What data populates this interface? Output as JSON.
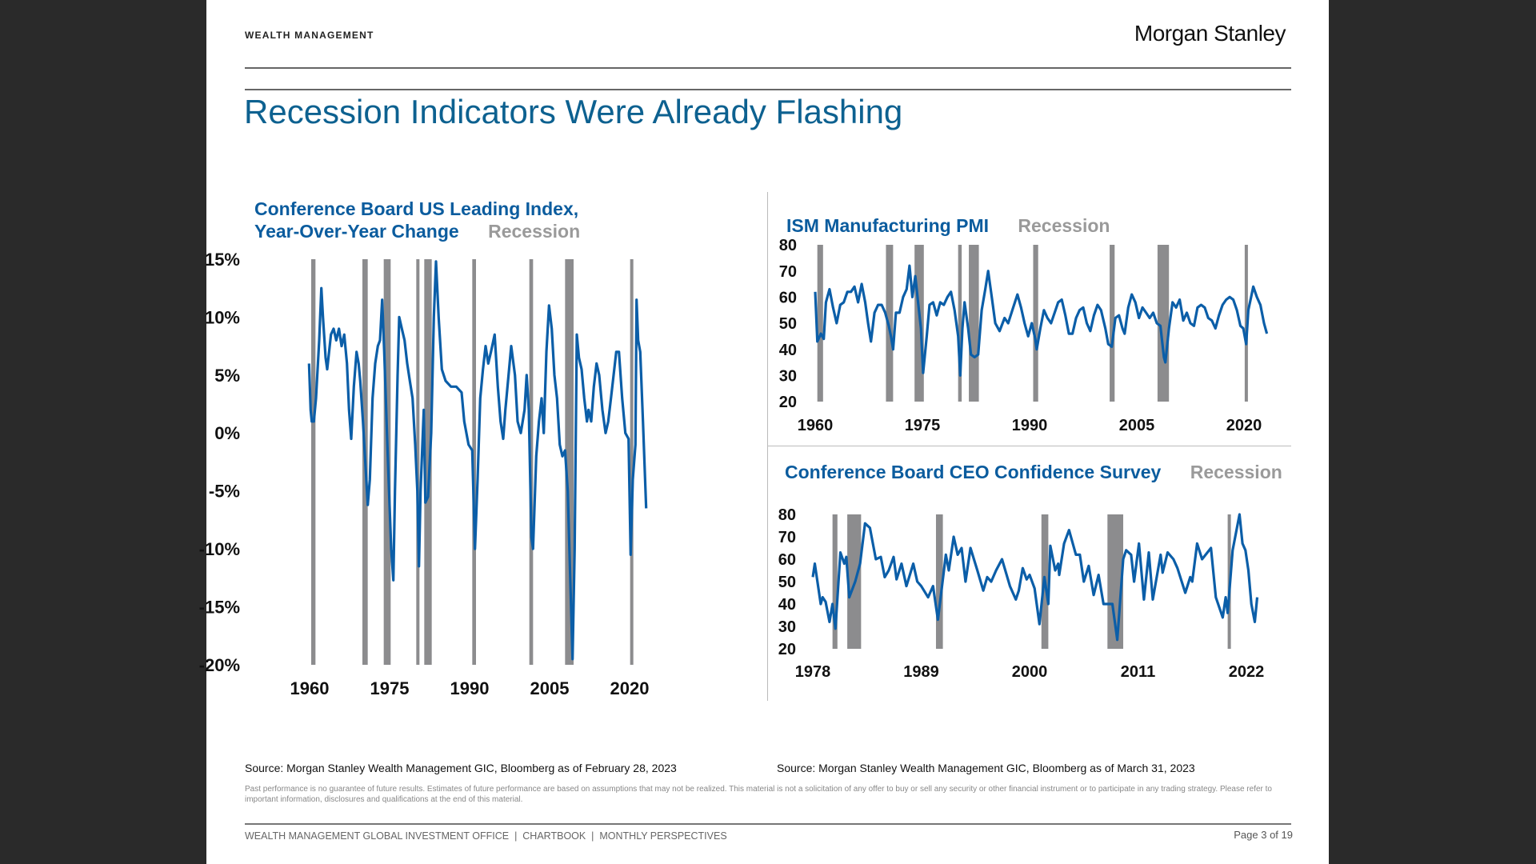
{
  "header": {
    "section": "WEALTH MANAGEMENT",
    "logo": "Morgan Stanley"
  },
  "title": "Recession Indicators Were Already Flashing",
  "colors": {
    "line": "#0b5ea8",
    "recession": "#8c8c8e",
    "title": "#0d6190"
  },
  "chart_data": [
    {
      "type": "line",
      "title": "Conference Board US Leading Index, Year-Over-Year Change",
      "legend": [
        "Recession"
      ],
      "yticks": [
        "15%",
        "10%",
        "5%",
        "0%",
        "-5%",
        "-10%",
        "-15%",
        "-20%"
      ],
      "ylim": [
        -20,
        15
      ],
      "xticks": [
        "1960",
        "1975",
        "1990",
        "2005",
        "2020"
      ],
      "xlim": [
        1960,
        2023
      ],
      "recessions": [
        [
          1960.3,
          1961.1
        ],
        [
          1969.9,
          1970.9
        ],
        [
          1973.9,
          1975.2
        ],
        [
          1980.0,
          1980.5
        ],
        [
          1981.5,
          1982.9
        ],
        [
          1990.5,
          1991.2
        ],
        [
          2001.2,
          2001.9
        ],
        [
          2007.9,
          2009.5
        ],
        [
          2020.1,
          2020.4
        ]
      ],
      "x": [
        1959.9,
        1960.2,
        1960.4,
        1960.8,
        1961.2,
        1961.8,
        1962.2,
        1962.5,
        1963,
        1963.3,
        1964,
        1964.5,
        1965,
        1965.5,
        1966,
        1966.5,
        1967,
        1967.4,
        1967.8,
        1968.3,
        1968.8,
        1969.2,
        1969.5,
        1970,
        1970.5,
        1970.9,
        1971.3,
        1971.8,
        1972.3,
        1972.8,
        1973.2,
        1973.6,
        1974,
        1974.5,
        1974.9,
        1975.3,
        1975.7,
        1976,
        1976.5,
        1976.8,
        1977.3,
        1977.8,
        1978.3,
        1978.8,
        1979.3,
        1979.8,
        1980.2,
        1980.5,
        1980.8,
        1981.4,
        1981.7,
        1982.2,
        1982.8,
        1983.3,
        1983.7,
        1984.2,
        1984.8,
        1985.5,
        1986.5,
        1987.5,
        1988.5,
        1989,
        1989.8,
        1990.5,
        1991,
        1991.5,
        1992,
        1992.5,
        1993,
        1993.5,
        1994,
        1994.7,
        1995.3,
        1995.8,
        1996.3,
        1996.7,
        1997.3,
        1997.8,
        1998.5,
        1999,
        1999.6,
        2000.3,
        2000.7,
        2001.1,
        2001.6,
        2001.9,
        2002.5,
        2003,
        2003.5,
        2003.9,
        2004.4,
        2004.9,
        2005.4,
        2005.9,
        2006.4,
        2006.9,
        2007.4,
        2007.9,
        2008.4,
        2008.9,
        2009.3,
        2009.7,
        2010.1,
        2010.5,
        2011,
        2011.5,
        2012,
        2012.3,
        2012.8,
        2013.3,
        2013.8,
        2014.3,
        2014.9,
        2015.5,
        2016,
        2016.5,
        2017,
        2017.5,
        2018,
        2018.6,
        2019.2,
        2019.8,
        2020.2,
        2020.6,
        2021.1,
        2021.3,
        2021.6,
        2022,
        2022.5,
        2023.1
      ],
      "y": [
        6,
        2,
        1,
        1,
        3,
        8,
        12.5,
        10,
        6.5,
        5.5,
        8.5,
        9,
        8,
        9,
        7.5,
        8.5,
        6,
        2,
        -0.5,
        4,
        7,
        6,
        4.5,
        1,
        -3,
        -6.2,
        -4,
        3,
        6,
        7.5,
        8,
        11.5,
        7,
        0,
        -5,
        -10,
        -12.7,
        -5,
        5,
        10,
        9,
        8,
        6,
        4.5,
        3,
        -1,
        -5,
        -11.5,
        -5,
        2,
        -6,
        -5.5,
        0,
        10,
        14.8,
        10,
        5.5,
        4.5,
        4,
        4,
        3.5,
        1,
        -1,
        -1.5,
        -10,
        -4,
        3,
        5.5,
        7.5,
        6,
        7,
        8.5,
        4,
        1,
        -0.5,
        2,
        5,
        7.5,
        5,
        1,
        0,
        2,
        5,
        2,
        -9,
        -10,
        -2,
        1,
        3,
        0,
        7,
        11,
        9,
        5,
        3,
        -1,
        -2,
        -1.5,
        -5,
        -13,
        -19.5,
        -10,
        8.5,
        6.5,
        5.5,
        3,
        1,
        2,
        1,
        4,
        6,
        5,
        2,
        0,
        1,
        3,
        5,
        7,
        7,
        3,
        0,
        -0.5,
        -10.5,
        -4,
        -1,
        11.5,
        8,
        7,
        1,
        -6.5
      ]
    },
    {
      "type": "line",
      "title": "ISM Manufacturing PMI",
      "legend": [
        "Recession"
      ],
      "yticks": [
        "80",
        "70",
        "60",
        "50",
        "40",
        "30",
        "20"
      ],
      "ylim": [
        20,
        80
      ],
      "xticks": [
        "1960",
        "1975",
        "1990",
        "2005",
        "2020"
      ],
      "xlim": [
        1960,
        2023
      ],
      "recessions": [
        [
          1960.3,
          1961.1
        ],
        [
          1969.9,
          1970.9
        ],
        [
          1973.9,
          1975.2
        ],
        [
          1980.0,
          1980.5
        ],
        [
          1981.5,
          1982.9
        ],
        [
          1990.5,
          1991.2
        ],
        [
          2001.2,
          2001.9
        ],
        [
          2007.9,
          2009.5
        ],
        [
          2020.1,
          2020.4
        ]
      ],
      "x": [
        1960,
        1960.3,
        1960.8,
        1961.2,
        1961.5,
        1962,
        1962.5,
        1963,
        1963.5,
        1964,
        1964.5,
        1965,
        1965.5,
        1966,
        1966.5,
        1967,
        1967.4,
        1967.8,
        1968.3,
        1968.8,
        1969.3,
        1969.8,
        1970.3,
        1970.6,
        1970.9,
        1971.3,
        1971.8,
        1972.3,
        1972.8,
        1973.2,
        1973.6,
        1974,
        1974.4,
        1974.8,
        1975.1,
        1975.6,
        1976,
        1976.5,
        1977,
        1977.5,
        1978,
        1978.5,
        1979,
        1979.5,
        1980,
        1980.3,
        1980.6,
        1980.9,
        1981.4,
        1981.8,
        1982.3,
        1982.8,
        1983.3,
        1983.8,
        1984.2,
        1984.7,
        1985.2,
        1985.8,
        1986.5,
        1987,
        1987.7,
        1988.3,
        1988.8,
        1989.3,
        1989.8,
        1990.3,
        1990.8,
        1991,
        1991.5,
        1992,
        1992.5,
        1993,
        1993.5,
        1994,
        1994.5,
        1995,
        1995.5,
        1996,
        1996.5,
        1997,
        1997.5,
        1998,
        1998.5,
        1999,
        1999.5,
        2000,
        2000.6,
        2001,
        2001.5,
        2002,
        2002.5,
        2003,
        2003.3,
        2003.8,
        2004.3,
        2004.8,
        2005.3,
        2005.8,
        2006.3,
        2006.8,
        2007.3,
        2007.8,
        2008.3,
        2008.8,
        2009,
        2009.5,
        2010,
        2010.5,
        2011,
        2011.5,
        2012,
        2012.5,
        2013,
        2013.5,
        2014,
        2014.5,
        2015,
        2015.5,
        2016,
        2016.5,
        2017,
        2017.5,
        2018,
        2018.5,
        2019,
        2019.5,
        2019.9,
        2020.3,
        2020.6,
        2021,
        2021.3,
        2021.8,
        2022.3,
        2022.8,
        2023.2
      ],
      "y": [
        62,
        43,
        46,
        44,
        58,
        63,
        56,
        50,
        57,
        58,
        62,
        62,
        64,
        58,
        65,
        58,
        50,
        43,
        54,
        57,
        57,
        54,
        49,
        45,
        40,
        54,
        54,
        60,
        63,
        72,
        60,
        68,
        58,
        48,
        31,
        45,
        57,
        58,
        53,
        58,
        57,
        60,
        62,
        55,
        45,
        30,
        48,
        58,
        48,
        38,
        37,
        38,
        55,
        63,
        70,
        60,
        50,
        47,
        52,
        50,
        56,
        61,
        56,
        50,
        45,
        50,
        44,
        40,
        48,
        55,
        52,
        50,
        54,
        58,
        59,
        53,
        46,
        46,
        52,
        55,
        56,
        50,
        47,
        53,
        57,
        55,
        48,
        42,
        41,
        52,
        53,
        48,
        46,
        56,
        61,
        58,
        52,
        56,
        54,
        52,
        54,
        50,
        49,
        37,
        35,
        48,
        58,
        56,
        59,
        51,
        54,
        50,
        49,
        56,
        57,
        56,
        52,
        51,
        48,
        53,
        57,
        59,
        60,
        59,
        55,
        49,
        48,
        42,
        55,
        60,
        64,
        60,
        57,
        50,
        46
      ]
    },
    {
      "type": "line",
      "title": "Conference Board CEO Confidence Survey",
      "legend": [
        "Recession"
      ],
      "yticks": [
        "80",
        "70",
        "60",
        "50",
        "40",
        "30",
        "20"
      ],
      "ylim": [
        20,
        80
      ],
      "xticks": [
        "1978",
        "1989",
        "2000",
        "2011",
        "2022"
      ],
      "xlim": [
        1978,
        2023
      ],
      "recessions": [
        [
          1980.0,
          1980.5
        ],
        [
          1981.5,
          1982.9
        ],
        [
          1990.5,
          1991.2
        ],
        [
          2001.2,
          2001.9
        ],
        [
          2007.9,
          2009.5
        ],
        [
          2020.1,
          2020.4
        ]
      ],
      "x": [
        1978,
        1978.2,
        1978.8,
        1979,
        1979.3,
        1979.7,
        1980,
        1980.3,
        1980.8,
        1981.2,
        1981.4,
        1981.7,
        1982.3,
        1982.8,
        1983.3,
        1983.8,
        1984.4,
        1984.9,
        1985.3,
        1985.7,
        1986.2,
        1986.5,
        1987,
        1987.5,
        1988.2,
        1988.6,
        1989,
        1989.7,
        1990.2,
        1990.7,
        1991.5,
        1991.8,
        1992.3,
        1992.7,
        1993.1,
        1993.5,
        1994,
        1994.7,
        1995.3,
        1995.7,
        1996.1,
        1996.6,
        1997.2,
        1998,
        1998.6,
        1998.9,
        1999.3,
        1999.7,
        2000,
        2000.5,
        2001,
        2001.5,
        2001.9,
        2002.1,
        2002.6,
        2002.9,
        2003,
        2003.5,
        2004,
        2004.7,
        2005.1,
        2005.5,
        2006,
        2006.5,
        2007,
        2007.5,
        2008.4,
        2008.9,
        2009.5,
        2009.8,
        2010.3,
        2010.6,
        2011.1,
        2011.6,
        2012.1,
        2012.5,
        2013.3,
        2013.5,
        2014,
        2014.6,
        2015,
        2015.8,
        2016.3,
        2016.5,
        2017,
        2017.5,
        2018.4,
        2018.9,
        2019.6,
        2019.9,
        2020.1,
        2020.6,
        2021.3,
        2021.6,
        2021.9,
        2022.2,
        2022.5,
        2022.85,
        2023.1
      ],
      "y": [
        52,
        58,
        40,
        43,
        41,
        32,
        40,
        29,
        63,
        58,
        61,
        43,
        50,
        58,
        76,
        74,
        60,
        61,
        52,
        55,
        61,
        51,
        58,
        48,
        58,
        50,
        48,
        43,
        48,
        33,
        62,
        55,
        70,
        62,
        65,
        50,
        65,
        55,
        46,
        52,
        50,
        55,
        60,
        48,
        42,
        46,
        56,
        51,
        53,
        47,
        31,
        52,
        40,
        66,
        55,
        58,
        53,
        67,
        73,
        62,
        62,
        50,
        57,
        44,
        53,
        40,
        40,
        24,
        60,
        64,
        62,
        50,
        67,
        42,
        63,
        42,
        62,
        54,
        63,
        60,
        56,
        45,
        52,
        50,
        67,
        60,
        65,
        43,
        34,
        43,
        36,
        64,
        80,
        67,
        64,
        55,
        40,
        32,
        43
      ]
    }
  ],
  "sources": {
    "left": "Source: Morgan Stanley Wealth Management GIC, Bloomberg as of February 28, 2023",
    "right": "Source: Morgan Stanley Wealth Management GIC, Bloomberg as of March 31, 2023"
  },
  "disclaimer": "Past performance is no guarantee of future results. Estimates of future performance are based on assumptions that may not be realized. This material is not a solicitation of any offer to buy or sell any security or other financial instrument or to participate in any trading strategy. Please refer to important information, disclosures and qualifications at the end of this material.",
  "footer": {
    "text": "WEALTH MANAGEMENT GLOBAL INVESTMENT OFFICE  |  CHARTBOOK  |  MONTHLY PERSPECTIVES",
    "page": "Page 3 of 19"
  }
}
